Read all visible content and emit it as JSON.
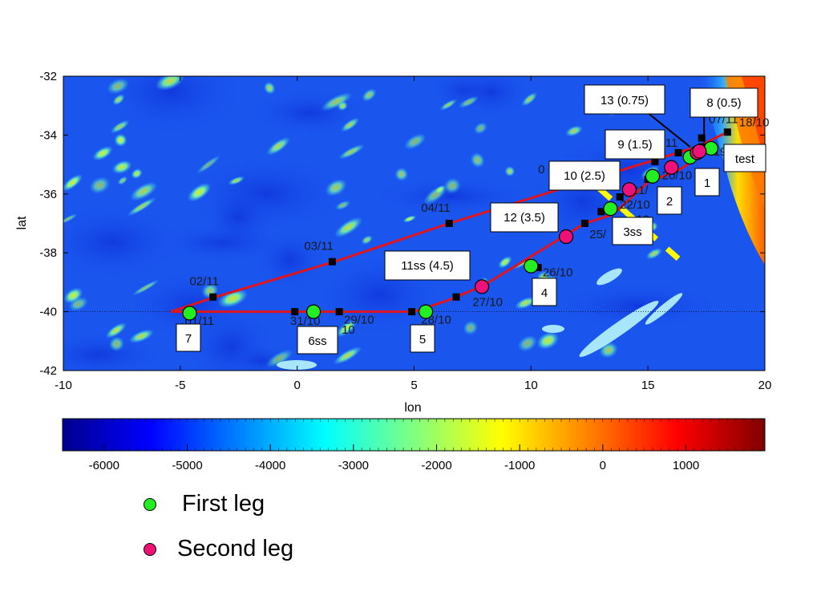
{
  "axes": {
    "x_label": "lon",
    "y_label": "lat",
    "x_ticks": [
      "-10",
      "-5",
      "0",
      "5",
      "10",
      "15",
      "20"
    ],
    "y_ticks": [
      "-32",
      "-34",
      "-36",
      "-38",
      "-40",
      "-42"
    ],
    "x_range": [
      -10,
      20
    ],
    "y_range": [
      -42,
      -32
    ]
  },
  "colorbar": {
    "ticks": [
      "-6000",
      "-5000",
      "-4000",
      "-3000",
      "-2000",
      "-1000",
      "0",
      "1000"
    ],
    "range": [
      -6500,
      1950
    ],
    "colors": [
      "#00008f",
      "#0000ff",
      "#0080ff",
      "#00ffff",
      "#80ff80",
      "#ffff00",
      "#ff8000",
      "#ff0000",
      "#800000"
    ]
  },
  "colors": {
    "track": "#e0141c",
    "first_leg": "#22ee22",
    "second_leg": "#ee1177",
    "section_line": "#ffff00",
    "ocean": "#1a55ee",
    "station_marker": "#000000"
  },
  "track": {
    "outbound": [
      [
        -5.4,
        -40.0
      ],
      [
        -3.5,
        -39.5
      ],
      [
        1.6,
        -38.3
      ],
      [
        6.5,
        -37.0
      ],
      [
        17.1,
        -34.4
      ],
      [
        18.4,
        -33.9
      ]
    ],
    "return": [
      [
        17.7,
        -34.5
      ],
      [
        16.3,
        -35.2
      ],
      [
        15.0,
        -35.6
      ],
      [
        13.5,
        -36.7
      ],
      [
        12.3,
        -37.0
      ],
      [
        8.0,
        -39.1
      ],
      [
        6.5,
        -39.6
      ],
      [
        5.0,
        -40.0
      ],
      [
        -5.4,
        -40.0
      ]
    ]
  },
  "section_line": {
    "from": [
      12.9,
      -35.8
    ],
    "to": [
      16.3,
      -38.2
    ]
  },
  "squares": [
    {
      "label": "18/10",
      "lon": 18.4,
      "lat": -33.9
    },
    {
      "label": "19/10",
      "lon": 17.3,
      "lat": -34.4
    },
    {
      "label": "20/10",
      "lon": 15.0,
      "lat": -35.5
    },
    {
      "label": "21/10",
      "lon": 13.8,
      "lat": -36.1
    },
    {
      "label": "22/10",
      "lon": 13.0,
      "lat": -36.6
    },
    {
      "label": "25/10",
      "lon": 12.3,
      "lat": -37.0
    },
    {
      "label": "26/10",
      "lon": 10.3,
      "lat": -38.5
    },
    {
      "label": "27/10",
      "lon": 6.8,
      "lat": -39.5
    },
    {
      "label": "28/10",
      "lon": 4.9,
      "lat": -40.0
    },
    {
      "label": "29/10",
      "lon": 1.8,
      "lat": -40.0
    },
    {
      "label": "31/10",
      "lon": -0.1,
      "lat": -40.0
    },
    {
      "label": "01/11",
      "lon": -4.5,
      "lat": -40.0
    },
    {
      "label": "02/11",
      "lon": -3.6,
      "lat": -39.5
    },
    {
      "label": "03/11",
      "lon": 1.5,
      "lat": -38.3
    },
    {
      "label": "04/11",
      "lon": 6.5,
      "lat": -37.0
    },
    {
      "label": "05/11",
      "lon": 15.3,
      "lat": -34.9
    },
    {
      "label": "06/11",
      "lon": 16.3,
      "lat": -34.6
    },
    {
      "label": "07/11",
      "lon": 17.3,
      "lat": -34.1
    }
  ],
  "date_labels": [
    {
      "text": "18/10",
      "lon": 18.9,
      "lat": -33.7
    },
    {
      "text": "19",
      "lon": 17.8,
      "lat": -34.7
    },
    {
      "text": "20/10",
      "lon": 15.6,
      "lat": -35.5
    },
    {
      "text": "21/",
      "lon": 14.3,
      "lat": -36.0
    },
    {
      "text": "22/10",
      "lon": 13.8,
      "lat": -36.5
    },
    {
      "text": "25/",
      "lon": 12.5,
      "lat": -37.5
    },
    {
      "text": "26/10",
      "lon": 10.5,
      "lat": -38.8
    },
    {
      "text": "27/10",
      "lon": 7.5,
      "lat": -39.8
    },
    {
      "text": "28/10",
      "lon": 5.3,
      "lat": -40.4
    },
    {
      "text": "29/10",
      "lon": 2.0,
      "lat": -40.4
    },
    {
      "text": "31/10",
      "lon": -0.3,
      "lat": -40.45
    },
    {
      "text": "10",
      "lon": 1.9,
      "lat": -40.75
    },
    {
      "text": "01/11",
      "lon": -4.8,
      "lat": -40.45
    },
    {
      "text": "02/11",
      "lon": -4.6,
      "lat": -39.1
    },
    {
      "text": "03/11",
      "lon": 0.3,
      "lat": -37.9
    },
    {
      "text": "04/11",
      "lon": 5.3,
      "lat": -36.6
    },
    {
      "text": "0",
      "lon": 10.3,
      "lat": -35.3
    },
    {
      "text": "/11",
      "lon": 15.6,
      "lat": -34.4
    },
    {
      "text": "07/11",
      "lon": 17.6,
      "lat": -33.6
    },
    {
      "text": "10",
      "lon": 14.5,
      "lat": -37.0
    }
  ],
  "first_leg_stations": [
    {
      "lon": 17.7,
      "lat": -34.45
    },
    {
      "lon": 16.8,
      "lat": -34.75
    },
    {
      "lon": 15.2,
      "lat": -35.4
    },
    {
      "lon": 13.4,
      "lat": -36.5
    },
    {
      "lon": 10.0,
      "lat": -38.45
    },
    {
      "lon": 5.5,
      "lat": -40.0
    },
    {
      "lon": 0.7,
      "lat": -40.0
    },
    {
      "lon": -4.6,
      "lat": -40.05
    }
  ],
  "second_leg_stations": [
    {
      "lon": 17.1,
      "lat": -34.6
    },
    {
      "lon": 17.2,
      "lat": -34.55
    },
    {
      "lon": 16.0,
      "lat": -35.1
    },
    {
      "lon": 14.2,
      "lat": -35.85
    },
    {
      "lon": 11.5,
      "lat": -37.45
    },
    {
      "lon": 7.9,
      "lat": -39.15
    }
  ],
  "station_labels": [
    {
      "id": "8",
      "text": "8 (0.5)",
      "pointer": [
        17.4,
        -34.25
      ],
      "anchor": [
        17.4,
        -33.35
      ]
    },
    {
      "id": "13",
      "text": "13 (0.75)",
      "pointer": [
        16.8,
        -34.4
      ],
      "anchor": [
        15.0,
        -33.25
      ]
    },
    {
      "id": "9",
      "text": "9 (1.5)",
      "pointer": null
    },
    {
      "id": "10",
      "text": "10 (2.5)",
      "pointer": null
    },
    {
      "id": "12",
      "text": "12 (3.5)",
      "pointer": null
    },
    {
      "id": "11ss",
      "text": "11ss (4.5)",
      "pointer": null
    },
    {
      "id": "test",
      "text": "test",
      "pointer": null
    },
    {
      "id": "1",
      "text": "1",
      "pointer": null
    },
    {
      "id": "2",
      "text": "2",
      "pointer": null
    },
    {
      "id": "3ss",
      "text": "3ss",
      "pointer": null
    },
    {
      "id": "4",
      "text": "4",
      "pointer": null
    },
    {
      "id": "5",
      "text": "5",
      "pointer": null
    },
    {
      "id": "6ss",
      "text": "6ss",
      "pointer": null
    },
    {
      "id": "7",
      "text": "7",
      "pointer": null
    }
  ],
  "legend": {
    "first_leg": "First leg",
    "second_leg": "Second leg"
  }
}
